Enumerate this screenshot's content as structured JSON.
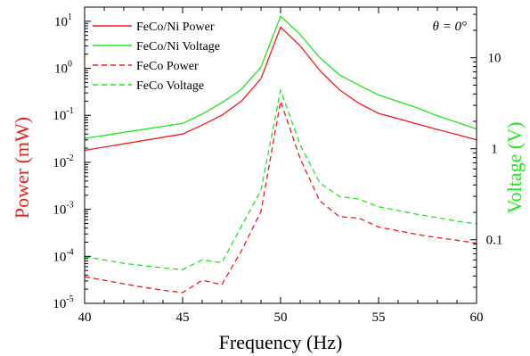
{
  "chart_data": {
    "type": "line",
    "xlabel": "Frequency (Hz)",
    "ylabel_left": "Power (mW)",
    "ylabel_right": "Voltage (V)",
    "xlim": [
      40,
      60
    ],
    "ylim_left": [
      1e-05,
      20
    ],
    "ylim_right": [
      0.02,
      36
    ],
    "y_scale_left": "log",
    "y_scale_right": "log",
    "x_ticks": [
      40,
      45,
      50,
      55,
      60
    ],
    "x_tick_labels": [
      "40",
      "45",
      "50",
      "55",
      "60"
    ],
    "y_left_ticks": [
      1e-05,
      0.0001,
      0.001,
      0.01,
      0.1,
      1,
      10
    ],
    "y_left_tick_labels": [
      {
        "base": "10",
        "exp": "-5"
      },
      {
        "base": "10",
        "exp": "-4"
      },
      {
        "base": "10",
        "exp": "-3"
      },
      {
        "base": "10",
        "exp": "-2"
      },
      {
        "base": "10",
        "exp": "-1"
      },
      {
        "base": "10",
        "exp": "0"
      },
      {
        "base": "10",
        "exp": "1"
      }
    ],
    "y_right_ticks": [
      0.1,
      1,
      10
    ],
    "y_right_tick_labels": [
      "0.1",
      "1",
      "10"
    ],
    "annotation": "θ = 0°",
    "legend_position": "top-left",
    "colors": {
      "power": "#ee1c1c",
      "voltage": "#1fe61f"
    },
    "series": [
      {
        "name": "FeCo/Ni Power",
        "axis": "left",
        "color": "#ee1c1c",
        "dash": "solid",
        "x": [
          40,
          45,
          46,
          47,
          48,
          49,
          50,
          51,
          52,
          53,
          54,
          55,
          56,
          57,
          58,
          59,
          60
        ],
        "y": [
          0.018,
          0.04,
          0.062,
          0.1,
          0.2,
          0.6,
          7.5,
          3.0,
          0.9,
          0.35,
          0.18,
          0.11,
          0.085,
          0.065,
          0.05,
          0.039,
          0.03
        ]
      },
      {
        "name": "FeCo/Ni Voltage",
        "axis": "right",
        "color": "#1fe61f",
        "dash": "solid",
        "x": [
          40,
          45,
          46,
          47,
          48,
          49,
          50,
          51,
          52,
          53,
          54,
          55,
          56,
          57,
          58,
          59,
          60
        ],
        "y": [
          1.3,
          1.9,
          2.4,
          3.2,
          4.5,
          7.9,
          28.5,
          18,
          10,
          6.5,
          5.0,
          3.9,
          3.3,
          2.8,
          2.3,
          1.95,
          1.65
        ]
      },
      {
        "name": "FeCo Power",
        "axis": "left",
        "color": "#ee1c1c",
        "dash": "dashed",
        "x": [
          40,
          41,
          42,
          43,
          44,
          45,
          46,
          47,
          48,
          49,
          50,
          51,
          52,
          53,
          54,
          55,
          56,
          57,
          58,
          59,
          60
        ],
        "y": [
          3.7e-05,
          3.1e-05,
          2.6e-05,
          2.2e-05,
          1.9e-05,
          1.7e-05,
          3.1e-05,
          2.5e-05,
          0.00013,
          0.0009,
          0.2,
          0.012,
          0.0015,
          0.0007,
          0.00065,
          0.00042,
          0.00035,
          0.00029,
          0.00025,
          0.00022,
          0.00019
        ]
      },
      {
        "name": "FeCo Voltage",
        "axis": "right",
        "color": "#1fe61f",
        "dash": "dashed",
        "x": [
          40,
          41,
          42,
          43,
          44,
          45,
          46,
          47,
          48,
          49,
          50,
          51,
          52,
          53,
          54,
          55,
          56,
          57,
          58,
          59,
          60
        ],
        "y": [
          0.065,
          0.06,
          0.055,
          0.052,
          0.049,
          0.047,
          0.06,
          0.056,
          0.14,
          0.35,
          4.4,
          1.1,
          0.42,
          0.3,
          0.28,
          0.23,
          0.21,
          0.19,
          0.175,
          0.16,
          0.15
        ]
      }
    ]
  }
}
